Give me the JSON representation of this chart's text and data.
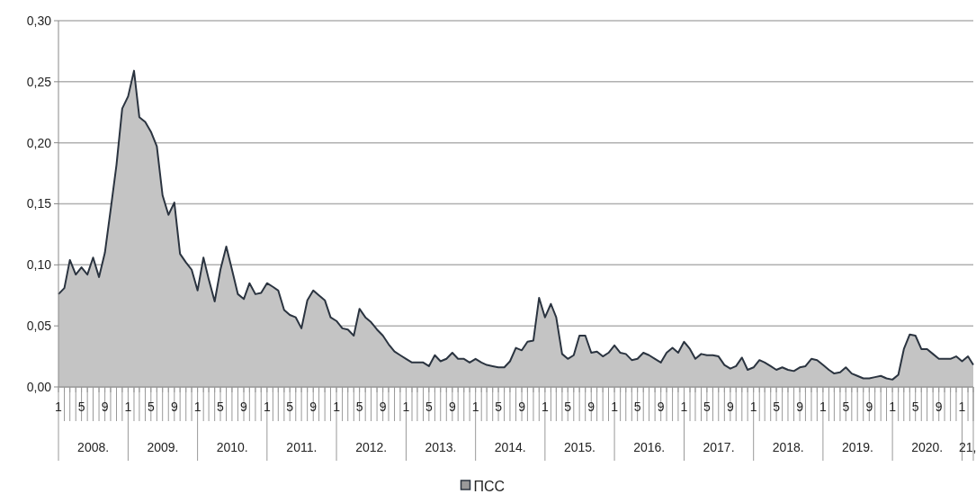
{
  "chart_data": {
    "type": "area",
    "x": [
      "2008-01",
      "2008-02",
      "2008-03",
      "2008-04",
      "2008-05",
      "2008-06",
      "2008-07",
      "2008-08",
      "2008-09",
      "2008-10",
      "2008-11",
      "2008-12",
      "2009-01",
      "2009-02",
      "2009-03",
      "2009-04",
      "2009-05",
      "2009-06",
      "2009-07",
      "2009-08",
      "2009-09",
      "2009-10",
      "2009-11",
      "2009-12",
      "2010-01",
      "2010-02",
      "2010-03",
      "2010-04",
      "2010-05",
      "2010-06",
      "2010-07",
      "2010-08",
      "2010-09",
      "2010-10",
      "2010-11",
      "2010-12",
      "2011-01",
      "2011-02",
      "2011-03",
      "2011-04",
      "2011-05",
      "2011-06",
      "2011-07",
      "2011-08",
      "2011-09",
      "2011-10",
      "2011-11",
      "2011-12",
      "2012-01",
      "2012-02",
      "2012-03",
      "2012-04",
      "2012-05",
      "2012-06",
      "2012-07",
      "2012-08",
      "2012-09",
      "2012-10",
      "2012-11",
      "2012-12",
      "2013-01",
      "2013-02",
      "2013-03",
      "2013-04",
      "2013-05",
      "2013-06",
      "2013-07",
      "2013-08",
      "2013-09",
      "2013-10",
      "2013-11",
      "2013-12",
      "2014-01",
      "2014-02",
      "2014-03",
      "2014-04",
      "2014-05",
      "2014-06",
      "2014-07",
      "2014-08",
      "2014-09",
      "2014-10",
      "2014-11",
      "2014-12",
      "2015-01",
      "2015-02",
      "2015-03",
      "2015-04",
      "2015-05",
      "2015-06",
      "2015-07",
      "2015-08",
      "2015-09",
      "2015-10",
      "2015-11",
      "2015-12",
      "2016-01",
      "2016-02",
      "2016-03",
      "2016-04",
      "2016-05",
      "2016-06",
      "2016-07",
      "2016-08",
      "2016-09",
      "2016-10",
      "2016-11",
      "2016-12",
      "2017-01",
      "2017-02",
      "2017-03",
      "2017-04",
      "2017-05",
      "2017-06",
      "2017-07",
      "2017-08",
      "2017-09",
      "2017-10",
      "2017-11",
      "2017-12",
      "2018-01",
      "2018-02",
      "2018-03",
      "2018-04",
      "2018-05",
      "2018-06",
      "2018-07",
      "2018-08",
      "2018-09",
      "2018-10",
      "2018-11",
      "2018-12",
      "2019-01",
      "2019-02",
      "2019-03",
      "2019-04",
      "2019-05",
      "2019-06",
      "2019-07",
      "2019-08",
      "2019-09",
      "2019-10",
      "2019-11",
      "2019-12",
      "2020-01",
      "2020-02",
      "2020-03",
      "2020-04",
      "2020-05",
      "2020-06",
      "2020-07",
      "2020-08",
      "2020-09",
      "2020-10",
      "2020-11",
      "2020-12",
      "2021-01",
      "2021-02",
      "2021-03"
    ],
    "series": [
      {
        "name": "ПСС",
        "color": "#2b3440",
        "values": [
          0.076,
          0.081,
          0.104,
          0.092,
          0.098,
          0.092,
          0.106,
          0.09,
          0.11,
          0.145,
          0.182,
          0.228,
          0.238,
          0.259,
          0.221,
          0.217,
          0.209,
          0.197,
          0.157,
          0.141,
          0.151,
          0.109,
          0.102,
          0.096,
          0.079,
          0.106,
          0.088,
          0.07,
          0.096,
          0.115,
          0.096,
          0.076,
          0.072,
          0.085,
          0.076,
          0.077,
          0.085,
          0.082,
          0.079,
          0.063,
          0.059,
          0.057,
          0.048,
          0.071,
          0.079,
          0.075,
          0.071,
          0.057,
          0.054,
          0.048,
          0.047,
          0.042,
          0.064,
          0.057,
          0.053,
          0.047,
          0.042,
          0.035,
          0.029,
          0.026,
          0.023,
          0.02,
          0.02,
          0.02,
          0.017,
          0.026,
          0.021,
          0.023,
          0.028,
          0.023,
          0.023,
          0.02,
          0.023,
          0.02,
          0.018,
          0.017,
          0.016,
          0.016,
          0.021,
          0.032,
          0.03,
          0.037,
          0.038,
          0.073,
          0.057,
          0.068,
          0.057,
          0.027,
          0.023,
          0.026,
          0.042,
          0.042,
          0.028,
          0.029,
          0.025,
          0.028,
          0.034,
          0.028,
          0.027,
          0.022,
          0.023,
          0.028,
          0.026,
          0.023,
          0.02,
          0.028,
          0.032,
          0.028,
          0.037,
          0.031,
          0.023,
          0.027,
          0.026,
          0.026,
          0.025,
          0.018,
          0.015,
          0.017,
          0.024,
          0.014,
          0.016,
          0.022,
          0.02,
          0.017,
          0.014,
          0.016,
          0.014,
          0.013,
          0.016,
          0.017,
          0.023,
          0.022,
          0.018,
          0.014,
          0.011,
          0.012,
          0.016,
          0.011,
          0.009,
          0.007,
          0.007,
          0.008,
          0.009,
          0.007,
          0.006,
          0.01,
          0.031,
          0.043,
          0.042,
          0.031,
          0.031,
          0.027,
          0.023,
          0.023,
          0.023,
          0.025,
          0.021,
          0.025,
          0.018
        ]
      }
    ],
    "xlim": [
      "2008-01",
      "2021-03"
    ],
    "xticks": [
      {
        "value": "2008-01",
        "label": "1"
      },
      {
        "value": "2008-02",
        "label": null
      },
      {
        "value": "2008-03",
        "label": null
      },
      {
        "value": "2008-04",
        "label": null
      },
      {
        "value": "2008-05",
        "label": "5"
      },
      {
        "value": "2008-06",
        "label": null
      },
      {
        "value": "2008-07",
        "label": null
      },
      {
        "value": "2008-08",
        "label": null
      },
      {
        "value": "2008-09",
        "label": "9"
      },
      {
        "value": "2008-10",
        "label": null
      },
      {
        "value": "2008-11",
        "label": null
      },
      {
        "value": "2008-12",
        "label": null
      },
      {
        "value": "2009-01",
        "label": "1"
      },
      {
        "value": "2009-02",
        "label": null
      },
      {
        "value": "2009-03",
        "label": null
      },
      {
        "value": "2009-04",
        "label": null
      },
      {
        "value": "2009-05",
        "label": "5"
      },
      {
        "value": "2009-06",
        "label": null
      },
      {
        "value": "2009-07",
        "label": null
      },
      {
        "value": "2009-08",
        "label": null
      },
      {
        "value": "2009-09",
        "label": "9"
      },
      {
        "value": "2009-10",
        "label": null
      },
      {
        "value": "2009-11",
        "label": null
      },
      {
        "value": "2009-12",
        "label": null
      },
      {
        "value": "2010-01",
        "label": "1"
      },
      {
        "value": "2010-02",
        "label": null
      },
      {
        "value": "2010-03",
        "label": null
      },
      {
        "value": "2010-04",
        "label": null
      },
      {
        "value": "2010-05",
        "label": "5"
      },
      {
        "value": "2010-06",
        "label": null
      },
      {
        "value": "2010-07",
        "label": null
      },
      {
        "value": "2010-08",
        "label": null
      },
      {
        "value": "2010-09",
        "label": "9"
      },
      {
        "value": "2010-10",
        "label": null
      },
      {
        "value": "2010-11",
        "label": null
      },
      {
        "value": "2010-12",
        "label": null
      },
      {
        "value": "2011-01",
        "label": "1"
      },
      {
        "value": "2011-02",
        "label": null
      },
      {
        "value": "2011-03",
        "label": null
      },
      {
        "value": "2011-04",
        "label": null
      },
      {
        "value": "2011-05",
        "label": "5"
      },
      {
        "value": "2011-06",
        "label": null
      },
      {
        "value": "2011-07",
        "label": null
      },
      {
        "value": "2011-08",
        "label": null
      },
      {
        "value": "2011-09",
        "label": "9"
      },
      {
        "value": "2011-10",
        "label": null
      },
      {
        "value": "2011-11",
        "label": null
      },
      {
        "value": "2011-12",
        "label": null
      },
      {
        "value": "2012-01",
        "label": "1"
      },
      {
        "value": "2012-02",
        "label": null
      },
      {
        "value": "2012-03",
        "label": null
      },
      {
        "value": "2012-04",
        "label": null
      },
      {
        "value": "2012-05",
        "label": "5"
      },
      {
        "value": "2012-06",
        "label": null
      },
      {
        "value": "2012-07",
        "label": null
      },
      {
        "value": "2012-08",
        "label": null
      },
      {
        "value": "2012-09",
        "label": "9"
      },
      {
        "value": "2012-10",
        "label": null
      },
      {
        "value": "2012-11",
        "label": null
      },
      {
        "value": "2012-12",
        "label": null
      },
      {
        "value": "2013-01",
        "label": "1"
      },
      {
        "value": "2013-02",
        "label": null
      },
      {
        "value": "2013-03",
        "label": null
      },
      {
        "value": "2013-04",
        "label": null
      },
      {
        "value": "2013-05",
        "label": "5"
      },
      {
        "value": "2013-06",
        "label": null
      },
      {
        "value": "2013-07",
        "label": null
      },
      {
        "value": "2013-08",
        "label": null
      },
      {
        "value": "2013-09",
        "label": "9"
      },
      {
        "value": "2013-10",
        "label": null
      },
      {
        "value": "2013-11",
        "label": null
      },
      {
        "value": "2013-12",
        "label": null
      },
      {
        "value": "2014-01",
        "label": "1"
      },
      {
        "value": "2014-02",
        "label": null
      },
      {
        "value": "2014-03",
        "label": null
      },
      {
        "value": "2014-04",
        "label": null
      },
      {
        "value": "2014-05",
        "label": "5"
      },
      {
        "value": "2014-06",
        "label": null
      },
      {
        "value": "2014-07",
        "label": null
      },
      {
        "value": "2014-08",
        "label": null
      },
      {
        "value": "2014-09",
        "label": "9"
      },
      {
        "value": "2014-10",
        "label": null
      },
      {
        "value": "2014-11",
        "label": null
      },
      {
        "value": "2014-12",
        "label": null
      },
      {
        "value": "2015-01",
        "label": "1"
      },
      {
        "value": "2015-02",
        "label": null
      },
      {
        "value": "2015-03",
        "label": null
      },
      {
        "value": "2015-04",
        "label": null
      },
      {
        "value": "2015-05",
        "label": "5"
      },
      {
        "value": "2015-06",
        "label": null
      },
      {
        "value": "2015-07",
        "label": null
      },
      {
        "value": "2015-08",
        "label": null
      },
      {
        "value": "2015-09",
        "label": "9"
      },
      {
        "value": "2015-10",
        "label": null
      },
      {
        "value": "2015-11",
        "label": null
      },
      {
        "value": "2015-12",
        "label": null
      },
      {
        "value": "2016-01",
        "label": "1"
      },
      {
        "value": "2016-02",
        "label": null
      },
      {
        "value": "2016-03",
        "label": null
      },
      {
        "value": "2016-04",
        "label": null
      },
      {
        "value": "2016-05",
        "label": "5"
      },
      {
        "value": "2016-06",
        "label": null
      },
      {
        "value": "2016-07",
        "label": null
      },
      {
        "value": "2016-08",
        "label": null
      },
      {
        "value": "2016-09",
        "label": "9"
      },
      {
        "value": "2016-10",
        "label": null
      },
      {
        "value": "2016-11",
        "label": null
      },
      {
        "value": "2016-12",
        "label": null
      },
      {
        "value": "2017-01",
        "label": "1"
      },
      {
        "value": "2017-02",
        "label": null
      },
      {
        "value": "2017-03",
        "label": null
      },
      {
        "value": "2017-04",
        "label": null
      },
      {
        "value": "2017-05",
        "label": "5"
      },
      {
        "value": "2017-06",
        "label": null
      },
      {
        "value": "2017-07",
        "label": null
      },
      {
        "value": "2017-08",
        "label": null
      },
      {
        "value": "2017-09",
        "label": "9"
      },
      {
        "value": "2017-10",
        "label": null
      },
      {
        "value": "2017-11",
        "label": null
      },
      {
        "value": "2017-12",
        "label": null
      },
      {
        "value": "2018-01",
        "label": "1"
      },
      {
        "value": "2018-02",
        "label": null
      },
      {
        "value": "2018-03",
        "label": null
      },
      {
        "value": "2018-04",
        "label": null
      },
      {
        "value": "2018-05",
        "label": "5"
      },
      {
        "value": "2018-06",
        "label": null
      },
      {
        "value": "2018-07",
        "label": null
      },
      {
        "value": "2018-08",
        "label": null
      },
      {
        "value": "2018-09",
        "label": "9"
      },
      {
        "value": "2018-10",
        "label": null
      },
      {
        "value": "2018-11",
        "label": null
      },
      {
        "value": "2018-12",
        "label": null
      },
      {
        "value": "2019-01",
        "label": "1"
      },
      {
        "value": "2019-02",
        "label": null
      },
      {
        "value": "2019-03",
        "label": null
      },
      {
        "value": "2019-04",
        "label": null
      },
      {
        "value": "2019-05",
        "label": "5"
      },
      {
        "value": "2019-06",
        "label": null
      },
      {
        "value": "2019-07",
        "label": null
      },
      {
        "value": "2019-08",
        "label": null
      },
      {
        "value": "2019-09",
        "label": "9"
      },
      {
        "value": "2019-10",
        "label": null
      },
      {
        "value": "2019-11",
        "label": null
      },
      {
        "value": "2019-12",
        "label": null
      },
      {
        "value": "2020-01",
        "label": "1"
      },
      {
        "value": "2020-02",
        "label": null
      },
      {
        "value": "2020-03",
        "label": null
      },
      {
        "value": "2020-04",
        "label": null
      },
      {
        "value": "2020-05",
        "label": "5"
      },
      {
        "value": "2020-06",
        "label": null
      },
      {
        "value": "2020-07",
        "label": null
      },
      {
        "value": "2020-08",
        "label": null
      },
      {
        "value": "2020-09",
        "label": "9"
      },
      {
        "value": "2020-10",
        "label": null
      },
      {
        "value": "2020-11",
        "label": null
      },
      {
        "value": "2020-12",
        "label": null
      },
      {
        "value": "2021-01",
        "label": "1"
      },
      {
        "value": "2021-02",
        "label": null
      },
      {
        "value": "2021-03",
        "label": null
      }
    ],
    "ylim": [
      0,
      0.3
    ],
    "yticks": [
      {
        "value": 0,
        "label": "0,00"
      },
      {
        "value": 0.05,
        "label": "0,05"
      },
      {
        "value": 0.1,
        "label": "0,10"
      },
      {
        "value": 0.15,
        "label": "0,15"
      },
      {
        "value": 0.2,
        "label": "0,20"
      },
      {
        "value": 0.25,
        "label": "0,25"
      },
      {
        "value": 0.3,
        "label": "0,30"
      }
    ],
    "grid": "y",
    "legend": "bottom",
    "annotations": [
      "2008.",
      "2009.",
      "2010.",
      "2011.",
      "2012.",
      "2013.",
      "2014.",
      "2015.",
      "2016.",
      "2017.",
      "2018.",
      "2019.",
      "2020.",
      "21,"
    ]
  }
}
